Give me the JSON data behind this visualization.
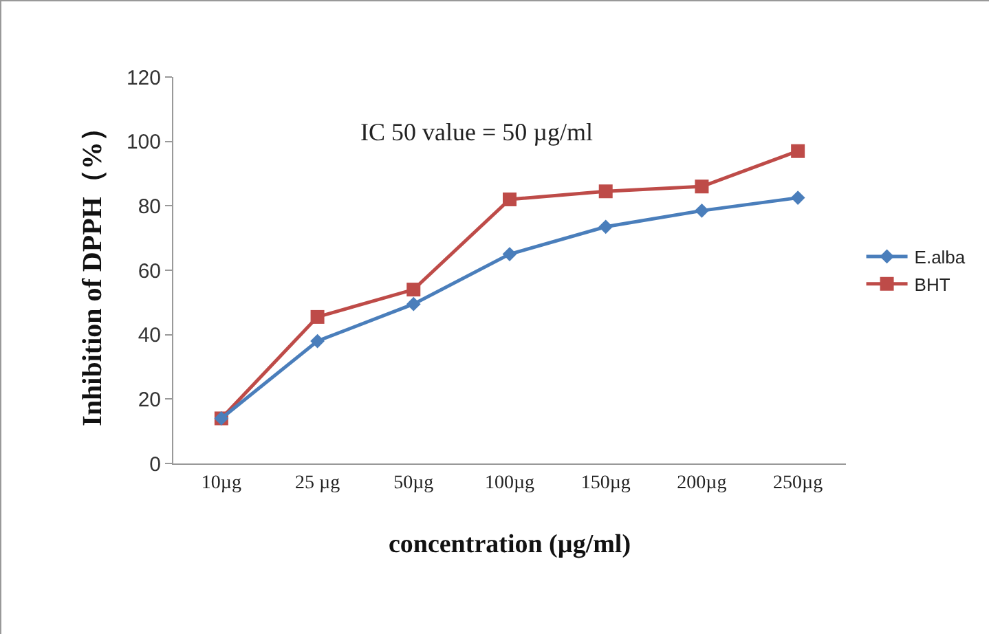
{
  "chart_data": {
    "type": "line",
    "xlabel": "concentration (µg/ml)",
    "ylabel": "Inhibition of DPPH（%）",
    "categories": [
      "10µg",
      "25 µg",
      "50µg",
      "100µg",
      "150µg",
      "200µg",
      "250µg"
    ],
    "series": [
      {
        "name": "E.alba",
        "color": "#4a7ebb",
        "marker": "diamond",
        "values": [
          14,
          38,
          49.5,
          65,
          73.5,
          78.5,
          82.5
        ]
      },
      {
        "name": "BHT",
        "color": "#be4b48",
        "marker": "square",
        "values": [
          14,
          45.5,
          54,
          82,
          84.5,
          86,
          97
        ]
      }
    ],
    "ylim": [
      0,
      120
    ],
    "yticks": [
      0,
      20,
      40,
      60,
      80,
      100,
      120
    ],
    "grid": false,
    "legend": "right",
    "line_style": "solid",
    "annotations": [
      "IC 50 value = 50 µg/ml"
    ]
  }
}
